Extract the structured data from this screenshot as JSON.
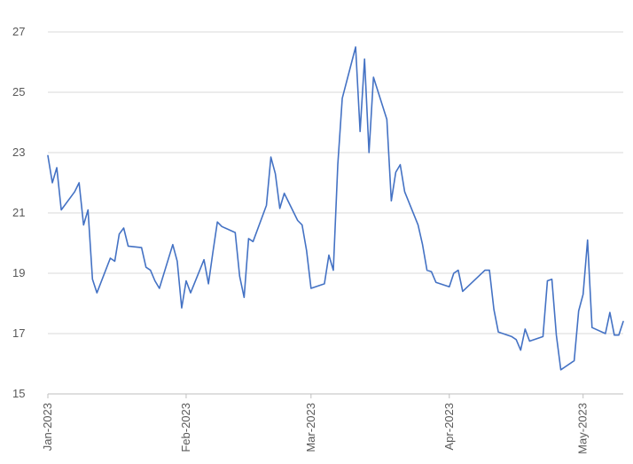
{
  "chart_data": {
    "type": "line",
    "title": "",
    "xlabel": "",
    "ylabel": "",
    "ylim": [
      15,
      27
    ],
    "yticks": [
      15,
      17,
      19,
      21,
      23,
      25,
      27
    ],
    "xlim": [
      "2023-01-01",
      "2023-05-10"
    ],
    "xticks": [
      {
        "date": "2023-01-01",
        "label": "Jan-2023"
      },
      {
        "date": "2023-02-01",
        "label": "Feb-2023"
      },
      {
        "date": "2023-03-01",
        "label": "Mar-2023"
      },
      {
        "date": "2023-04-01",
        "label": "Apr-2023"
      },
      {
        "date": "2023-05-01",
        "label": "May-2023"
      }
    ],
    "grid": "horizontal",
    "legend": "none",
    "colors": {
      "line": "#4472C4",
      "grid": "#d9d9d9",
      "axis": "#bfbfbf",
      "text": "#595959"
    },
    "series": [
      {
        "points": [
          [
            "2023-01-01",
            22.9
          ],
          [
            "2023-01-02",
            22.0
          ],
          [
            "2023-01-03",
            22.5
          ],
          [
            "2023-01-04",
            21.1
          ],
          [
            "2023-01-07",
            21.7
          ],
          [
            "2023-01-08",
            22.0
          ],
          [
            "2023-01-09",
            20.6
          ],
          [
            "2023-01-10",
            21.1
          ],
          [
            "2023-01-11",
            18.8
          ],
          [
            "2023-01-12",
            18.35
          ],
          [
            "2023-01-15",
            19.5
          ],
          [
            "2023-01-16",
            19.4
          ],
          [
            "2023-01-17",
            20.3
          ],
          [
            "2023-01-18",
            20.5
          ],
          [
            "2023-01-19",
            19.9
          ],
          [
            "2023-01-22",
            19.85
          ],
          [
            "2023-01-23",
            19.2
          ],
          [
            "2023-01-24",
            19.1
          ],
          [
            "2023-01-25",
            18.75
          ],
          [
            "2023-01-26",
            18.5
          ],
          [
            "2023-01-29",
            19.95
          ],
          [
            "2023-01-30",
            19.4
          ],
          [
            "2023-01-31",
            17.85
          ],
          [
            "2023-02-01",
            18.75
          ],
          [
            "2023-02-02",
            18.35
          ],
          [
            "2023-02-05",
            19.45
          ],
          [
            "2023-02-06",
            18.65
          ],
          [
            "2023-02-07",
            19.7
          ],
          [
            "2023-02-08",
            20.7
          ],
          [
            "2023-02-09",
            20.55
          ],
          [
            "2023-02-12",
            20.35
          ],
          [
            "2023-02-13",
            18.9
          ],
          [
            "2023-02-14",
            18.2
          ],
          [
            "2023-02-15",
            20.15
          ],
          [
            "2023-02-16",
            20.05
          ],
          [
            "2023-02-19",
            21.25
          ],
          [
            "2023-02-20",
            22.85
          ],
          [
            "2023-02-21",
            22.3
          ],
          [
            "2023-02-22",
            21.15
          ],
          [
            "2023-02-23",
            21.65
          ],
          [
            "2023-02-26",
            20.75
          ],
          [
            "2023-02-27",
            20.6
          ],
          [
            "2023-02-28",
            19.75
          ],
          [
            "2023-03-01",
            18.5
          ],
          [
            "2023-03-04",
            18.65
          ],
          [
            "2023-03-05",
            19.6
          ],
          [
            "2023-03-06",
            19.1
          ],
          [
            "2023-03-07",
            22.6
          ],
          [
            "2023-03-08",
            24.8
          ],
          [
            "2023-03-11",
            26.5
          ],
          [
            "2023-03-12",
            23.7
          ],
          [
            "2023-03-13",
            26.1
          ],
          [
            "2023-03-14",
            23.0
          ],
          [
            "2023-03-15",
            25.5
          ],
          [
            "2023-03-18",
            24.1
          ],
          [
            "2023-03-19",
            21.4
          ],
          [
            "2023-03-20",
            22.35
          ],
          [
            "2023-03-21",
            22.6
          ],
          [
            "2023-03-22",
            21.7
          ],
          [
            "2023-03-25",
            20.6
          ],
          [
            "2023-03-26",
            19.95
          ],
          [
            "2023-03-27",
            19.1
          ],
          [
            "2023-03-28",
            19.05
          ],
          [
            "2023-03-29",
            18.7
          ],
          [
            "2023-04-01",
            18.55
          ],
          [
            "2023-04-02",
            19.0
          ],
          [
            "2023-04-03",
            19.1
          ],
          [
            "2023-04-04",
            18.4
          ],
          [
            "2023-04-09",
            19.1
          ],
          [
            "2023-04-10",
            19.1
          ],
          [
            "2023-04-11",
            17.8
          ],
          [
            "2023-04-12",
            17.05
          ],
          [
            "2023-04-15",
            16.9
          ],
          [
            "2023-04-16",
            16.8
          ],
          [
            "2023-04-17",
            16.45
          ],
          [
            "2023-04-18",
            17.15
          ],
          [
            "2023-04-19",
            16.75
          ],
          [
            "2023-04-22",
            16.9
          ],
          [
            "2023-04-23",
            18.75
          ],
          [
            "2023-04-24",
            18.8
          ],
          [
            "2023-04-25",
            16.95
          ],
          [
            "2023-04-26",
            15.8
          ],
          [
            "2023-04-29",
            16.1
          ],
          [
            "2023-04-30",
            17.75
          ],
          [
            "2023-05-01",
            18.3
          ],
          [
            "2023-05-02",
            20.1
          ],
          [
            "2023-05-03",
            17.2
          ],
          [
            "2023-05-06",
            17.0
          ],
          [
            "2023-05-07",
            17.7
          ],
          [
            "2023-05-08",
            16.95
          ],
          [
            "2023-05-09",
            16.95
          ],
          [
            "2023-05-10",
            17.4
          ]
        ]
      }
    ]
  }
}
